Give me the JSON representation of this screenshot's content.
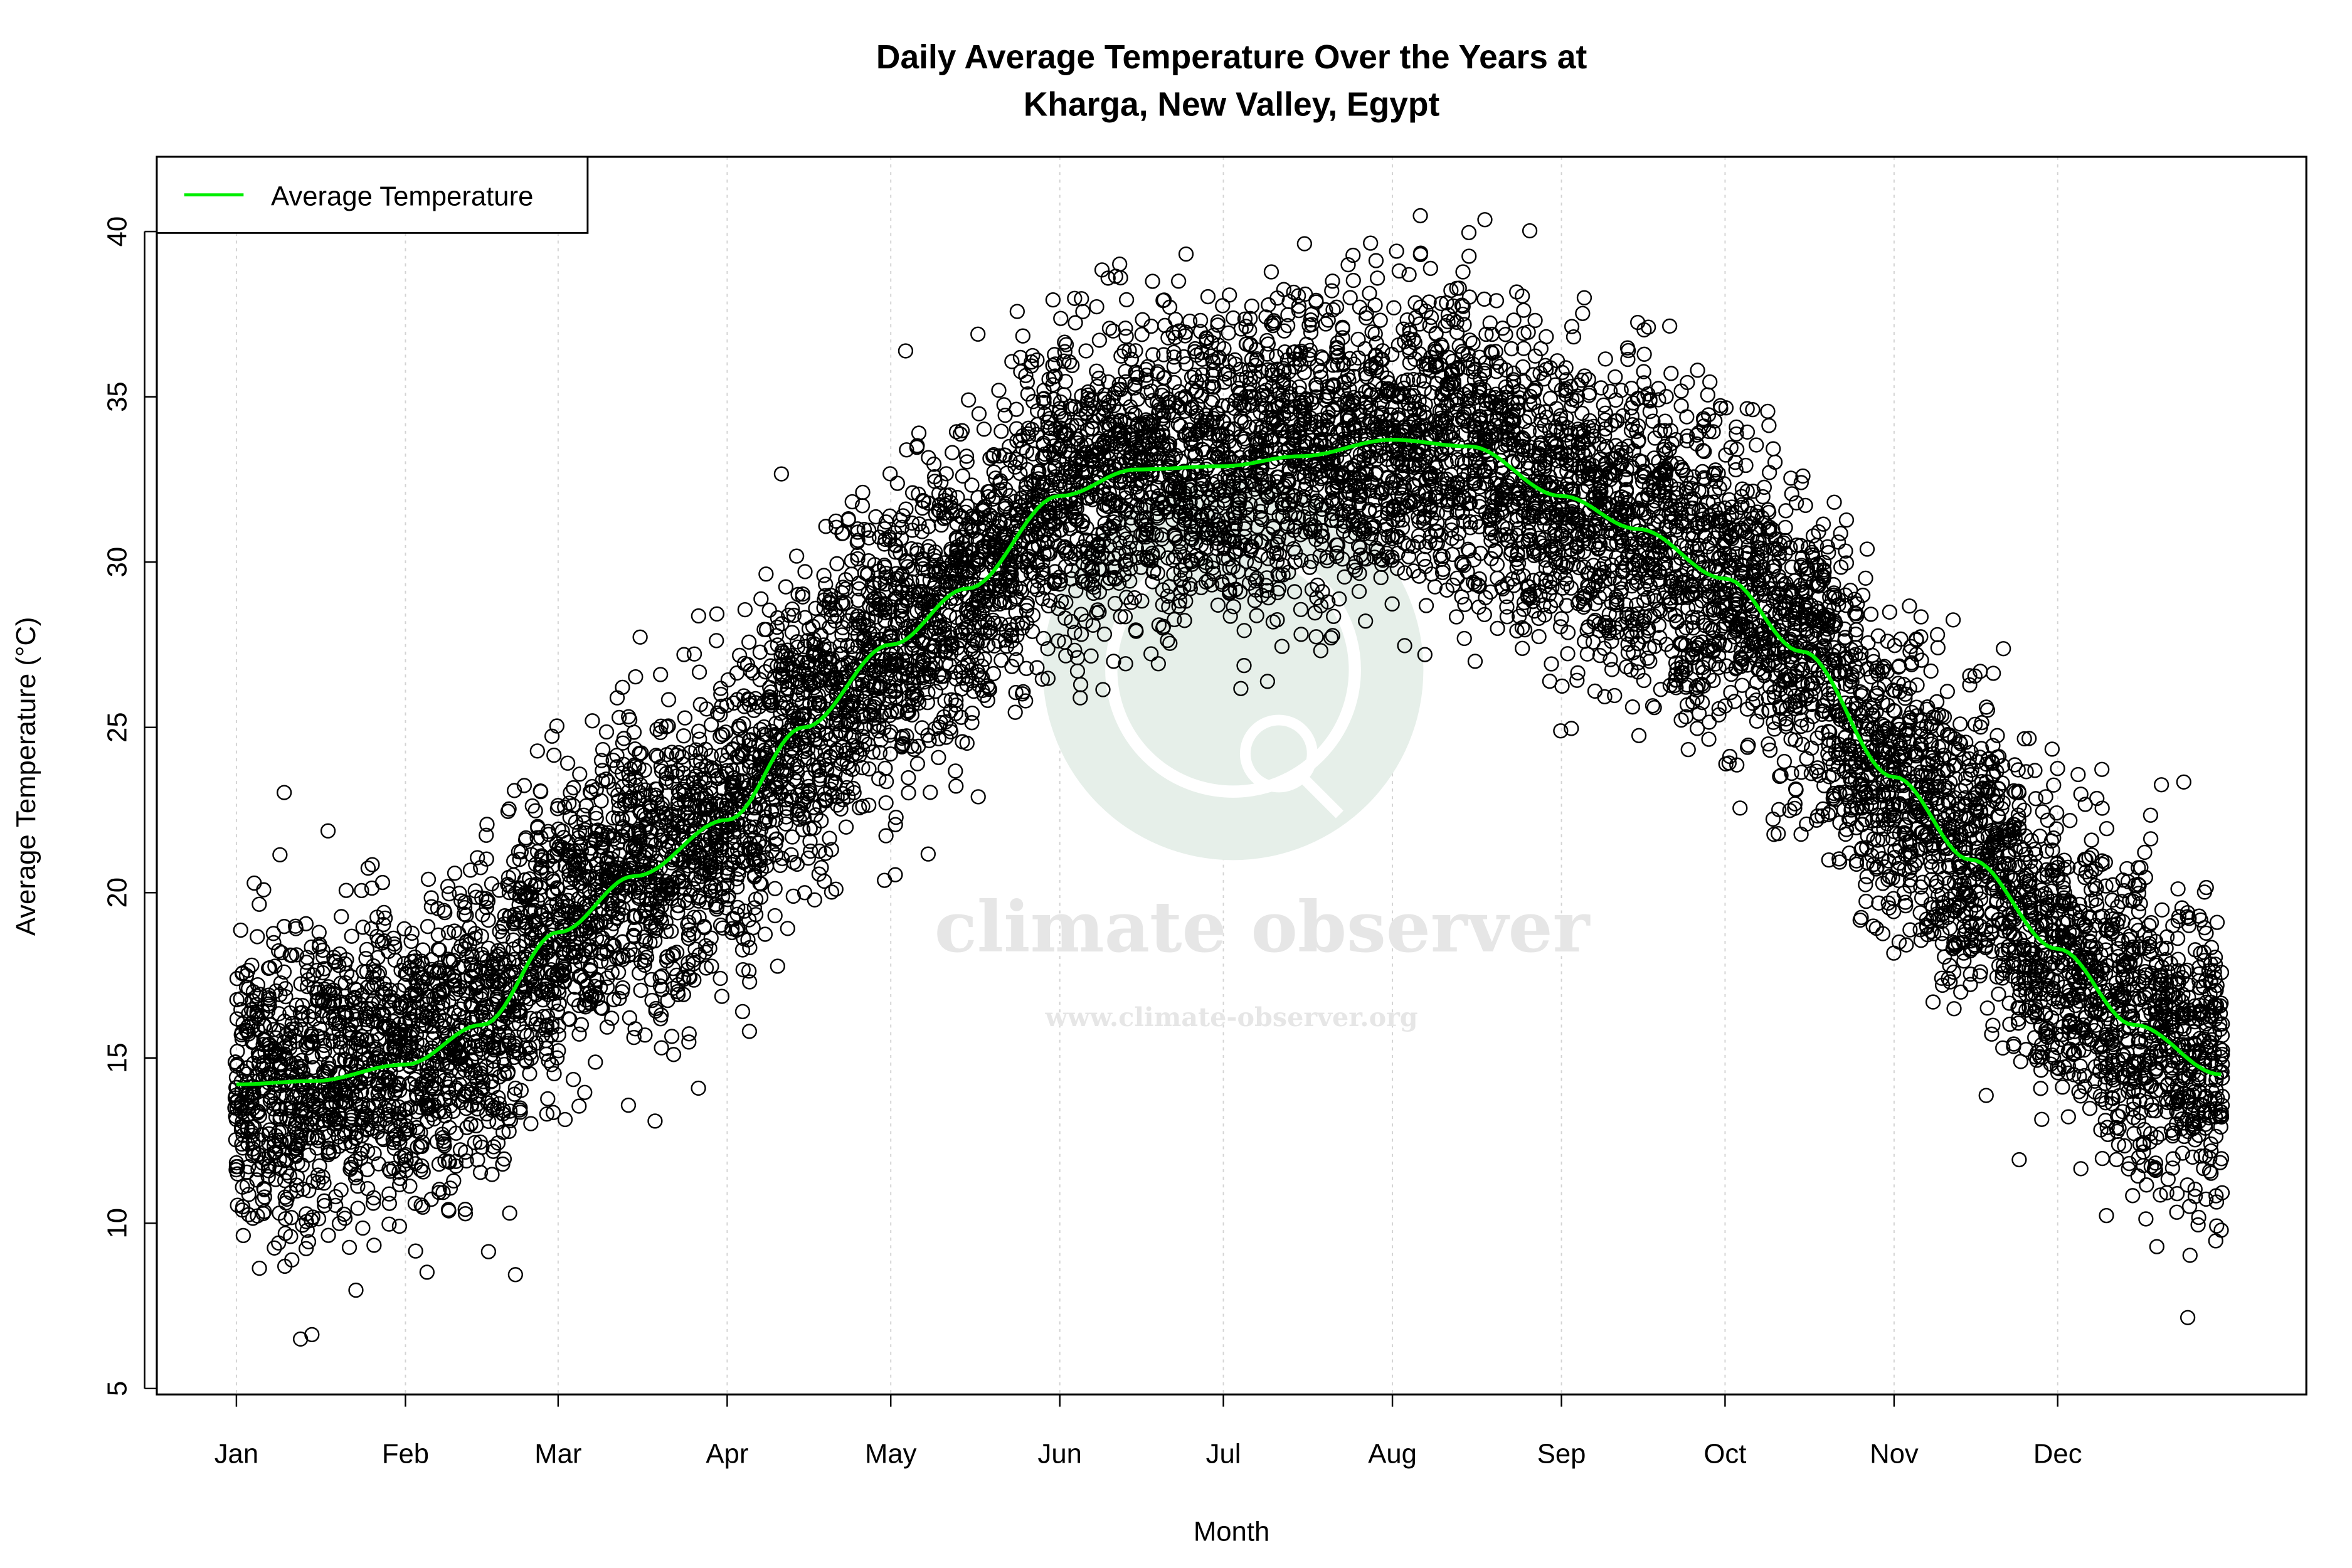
{
  "chart_data": {
    "type": "scatter",
    "title": "Daily Average Temperature Over the Years at",
    "subtitle": "Kharga, New Valley, Egypt",
    "xlabel": "Month",
    "ylabel": "Average Temperature (°C)",
    "x_ticks": [
      {
        "label": "Jan",
        "day": 1
      },
      {
        "label": "Feb",
        "day": 32
      },
      {
        "label": "Mar",
        "day": 60
      },
      {
        "label": "Apr",
        "day": 91
      },
      {
        "label": "May",
        "day": 121
      },
      {
        "label": "Jun",
        "day": 152
      },
      {
        "label": "Jul",
        "day": 182
      },
      {
        "label": "Aug",
        "day": 213
      },
      {
        "label": "Sep",
        "day": 244
      },
      {
        "label": "Oct",
        "day": 274
      },
      {
        "label": "Nov",
        "day": 305
      },
      {
        "label": "Dec",
        "day": 335
      }
    ],
    "xlim": [
      -13.6,
      380.6
    ],
    "y_ticks": [
      5,
      10,
      15,
      20,
      25,
      30,
      35,
      40
    ],
    "ylim": [
      4.82,
      42.26
    ],
    "grid": "vertical dotted at month ticks",
    "legend": {
      "position": "top-left",
      "entries": [
        {
          "label": "Average Temperature",
          "color": "#00ee00"
        }
      ]
    },
    "series": [
      {
        "name": "Average Temperature",
        "type": "line",
        "color": "#00ee00",
        "day": [
          1,
          15,
          32,
          46,
          60,
          74,
          91,
          105,
          121,
          135,
          152,
          166,
          182,
          196,
          213,
          227,
          244,
          258,
          274,
          288,
          305,
          319,
          335,
          349,
          365
        ],
        "values": [
          14.2,
          14.3,
          14.8,
          16.0,
          18.8,
          20.5,
          22.2,
          25.0,
          27.5,
          29.2,
          32.0,
          32.8,
          32.9,
          33.2,
          33.7,
          33.5,
          32.0,
          31.0,
          29.5,
          27.3,
          23.5,
          21.0,
          18.3,
          16.0,
          14.5
        ]
      }
    ],
    "scatter_points": {
      "marker": "open-circle",
      "color": "#000000",
      "description_monthly_range": [
        {
          "month": "Jan",
          "min": 6.2,
          "max": 25.3
        },
        {
          "month": "Feb",
          "min": 6.6,
          "max": 24.8
        },
        {
          "month": "Mar",
          "min": 8.6,
          "max": 31.7
        },
        {
          "month": "Apr",
          "min": 13.2,
          "max": 34.8
        },
        {
          "month": "May",
          "min": 16.5,
          "max": 40.6
        },
        {
          "month": "Jun",
          "min": 23.7,
          "max": 40.9
        },
        {
          "month": "Jul",
          "min": 25.0,
          "max": 40.8
        },
        {
          "month": "Aug",
          "min": 26.2,
          "max": 40.9
        },
        {
          "month": "Sep",
          "min": 24.2,
          "max": 38.0
        },
        {
          "month": "Oct",
          "min": 17.1,
          "max": 34.7
        },
        {
          "month": "Nov",
          "min": 11.8,
          "max": 30.7
        },
        {
          "month": "Dec",
          "min": 6.9,
          "max": 27.4
        }
      ]
    }
  },
  "watermark": {
    "name": "climate observer",
    "url": "www.climate-observer.org",
    "color": "#e6efe9"
  }
}
